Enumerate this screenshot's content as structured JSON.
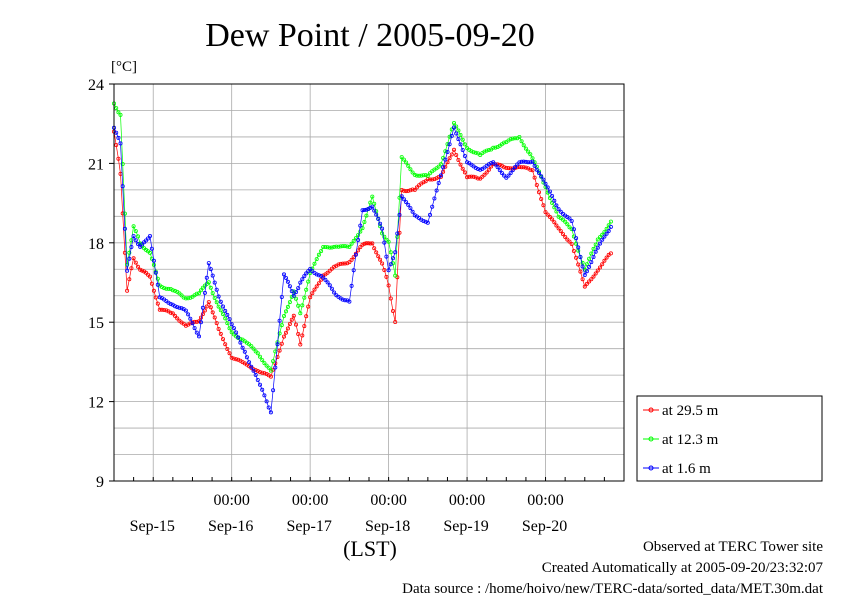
{
  "chart_data": {
    "type": "line",
    "title": "Dew Point / 2005-09-20",
    "ylabel": "[°C]",
    "xlabel": "(LST)",
    "ylim": [
      9,
      24
    ],
    "yticks": [
      9,
      12,
      15,
      18,
      21,
      24
    ],
    "xlim_days": [
      "2005-09-14T12:00",
      "2005-09-20T24:00"
    ],
    "time_tick_labels": [
      "00:00",
      "00:00",
      "00:00",
      "00:00",
      "00:00"
    ],
    "date_labels": [
      "Sep-15",
      "Sep-16",
      "Sep-17",
      "Sep-18",
      "Sep-19",
      "Sep-20"
    ],
    "grid": true,
    "legend_position": "right",
    "series": [
      {
        "name": "at 29.5 m",
        "color": "#ff0000",
        "points": [
          [
            "2005-09-14T12:00",
            22.2
          ],
          [
            "2005-09-14T14:00",
            20.6
          ],
          [
            "2005-09-14T16:00",
            16.2
          ],
          [
            "2005-09-14T18:00",
            17.4
          ],
          [
            "2005-09-14T20:00",
            17.0
          ],
          [
            "2005-09-14T23:00",
            16.7
          ],
          [
            "2005-09-15T02:00",
            15.5
          ],
          [
            "2005-09-15T06:00",
            15.3
          ],
          [
            "2005-09-15T10:00",
            14.9
          ],
          [
            "2005-09-15T14:00",
            15.0
          ],
          [
            "2005-09-15T17:00",
            15.8
          ],
          [
            "2005-09-15T20:00",
            14.7
          ],
          [
            "2005-09-16T00:00",
            13.7
          ],
          [
            "2005-09-16T04:00",
            13.4
          ],
          [
            "2005-09-16T08:00",
            13.2
          ],
          [
            "2005-09-16T12:00",
            12.9
          ],
          [
            "2005-09-16T16:00",
            14.5
          ],
          [
            "2005-09-16T19:00",
            15.2
          ],
          [
            "2005-09-16T21:00",
            14.2
          ],
          [
            "2005-09-17T00:00",
            15.9
          ],
          [
            "2005-09-17T04:00",
            16.8
          ],
          [
            "2005-09-17T08:00",
            17.1
          ],
          [
            "2005-09-17T12:00",
            17.3
          ],
          [
            "2005-09-17T16:00",
            17.9
          ],
          [
            "2005-09-17T19:00",
            18.0
          ],
          [
            "2005-09-17T22:00",
            17.2
          ],
          [
            "2005-09-18T00:00",
            16.4
          ],
          [
            "2005-09-18T02:00",
            15.0
          ],
          [
            "2005-09-18T04:00",
            20.0
          ],
          [
            "2005-09-18T08:00",
            20.0
          ],
          [
            "2005-09-18T12:00",
            20.4
          ],
          [
            "2005-09-18T16:00",
            20.5
          ],
          [
            "2005-09-18T20:00",
            21.5
          ],
          [
            "2005-09-19T00:00",
            20.5
          ],
          [
            "2005-09-19T04:00",
            20.4
          ],
          [
            "2005-09-19T08:00",
            21.0
          ],
          [
            "2005-09-19T12:00",
            20.8
          ],
          [
            "2005-09-19T16:00",
            20.9
          ],
          [
            "2005-09-19T20:00",
            20.7
          ],
          [
            "2005-09-20T00:00",
            19.2
          ],
          [
            "2005-09-20T04:00",
            18.5
          ],
          [
            "2005-09-20T08:00",
            18.0
          ],
          [
            "2005-09-20T12:00",
            16.3
          ],
          [
            "2005-09-20T16:00",
            17.0
          ],
          [
            "2005-09-20T20:00",
            17.6
          ]
        ]
      },
      {
        "name": "at 12.3 m",
        "color": "#00ff00",
        "points": [
          [
            "2005-09-14T12:00",
            23.3
          ],
          [
            "2005-09-14T14:00",
            22.8
          ],
          [
            "2005-09-14T16:00",
            17.2
          ],
          [
            "2005-09-14T18:00",
            18.6
          ],
          [
            "2005-09-14T20:00",
            18.0
          ],
          [
            "2005-09-14T23:00",
            17.6
          ],
          [
            "2005-09-15T02:00",
            16.4
          ],
          [
            "2005-09-15T06:00",
            16.2
          ],
          [
            "2005-09-15T10:00",
            15.9
          ],
          [
            "2005-09-15T14:00",
            16.1
          ],
          [
            "2005-09-15T17:00",
            16.5
          ],
          [
            "2005-09-15T20:00",
            15.6
          ],
          [
            "2005-09-16T00:00",
            14.6
          ],
          [
            "2005-09-16T04:00",
            14.3
          ],
          [
            "2005-09-16T08:00",
            13.8
          ],
          [
            "2005-09-16T12:00",
            13.2
          ],
          [
            "2005-09-16T16:00",
            15.2
          ],
          [
            "2005-09-16T19:00",
            16.2
          ],
          [
            "2005-09-16T21:00",
            15.3
          ],
          [
            "2005-09-17T00:00",
            16.9
          ],
          [
            "2005-09-17T04:00",
            17.8
          ],
          [
            "2005-09-17T08:00",
            17.9
          ],
          [
            "2005-09-17T12:00",
            17.8
          ],
          [
            "2005-09-17T16:00",
            18.6
          ],
          [
            "2005-09-17T19:00",
            19.7
          ],
          [
            "2005-09-17T22:00",
            18.4
          ],
          [
            "2005-09-18T00:00",
            18.0
          ],
          [
            "2005-09-18T02:00",
            16.8
          ],
          [
            "2005-09-18T04:00",
            21.2
          ],
          [
            "2005-09-18T08:00",
            20.6
          ],
          [
            "2005-09-18T12:00",
            20.5
          ],
          [
            "2005-09-18T16:00",
            21.0
          ],
          [
            "2005-09-18T20:00",
            22.5
          ],
          [
            "2005-09-19T00:00",
            21.6
          ],
          [
            "2005-09-19T04:00",
            21.3
          ],
          [
            "2005-09-19T08:00",
            21.6
          ],
          [
            "2005-09-19T12:00",
            21.8
          ],
          [
            "2005-09-19T16:00",
            22.0
          ],
          [
            "2005-09-19T20:00",
            21.2
          ],
          [
            "2005-09-20T00:00",
            20.1
          ],
          [
            "2005-09-20T04:00",
            19.0
          ],
          [
            "2005-09-20T08:00",
            18.5
          ],
          [
            "2005-09-20T12:00",
            17.0
          ],
          [
            "2005-09-20T16:00",
            18.1
          ],
          [
            "2005-09-20T20:00",
            18.8
          ]
        ]
      },
      {
        "name": "at 1.6 m",
        "color": "#0000ff",
        "points": [
          [
            "2005-09-14T12:00",
            22.3
          ],
          [
            "2005-09-14T14:00",
            21.8
          ],
          [
            "2005-09-14T16:00",
            16.9
          ],
          [
            "2005-09-14T18:00",
            18.3
          ],
          [
            "2005-09-14T20:00",
            17.8
          ],
          [
            "2005-09-14T23:00",
            18.3
          ],
          [
            "2005-09-15T02:00",
            15.9
          ],
          [
            "2005-09-15T06:00",
            15.7
          ],
          [
            "2005-09-15T10:00",
            15.4
          ],
          [
            "2005-09-15T14:00",
            14.5
          ],
          [
            "2005-09-15T17:00",
            17.2
          ],
          [
            "2005-09-15T20:00",
            16.0
          ],
          [
            "2005-09-16T00:00",
            14.9
          ],
          [
            "2005-09-16T04:00",
            13.9
          ],
          [
            "2005-09-16T08:00",
            12.8
          ],
          [
            "2005-09-16T12:00",
            11.6
          ],
          [
            "2005-09-16T16:00",
            16.8
          ],
          [
            "2005-09-16T19:00",
            16.0
          ],
          [
            "2005-09-16T21:00",
            16.5
          ],
          [
            "2005-09-17T00:00",
            17.0
          ],
          [
            "2005-09-17T04:00",
            16.7
          ],
          [
            "2005-09-17T08:00",
            16.0
          ],
          [
            "2005-09-17T12:00",
            15.8
          ],
          [
            "2005-09-17T16:00",
            19.2
          ],
          [
            "2005-09-17T19:00",
            19.4
          ],
          [
            "2005-09-17T22:00",
            18.5
          ],
          [
            "2005-09-18T00:00",
            17.0
          ],
          [
            "2005-09-18T02:00",
            17.6
          ],
          [
            "2005-09-18T04:00",
            19.8
          ],
          [
            "2005-09-18T08:00",
            19.0
          ],
          [
            "2005-09-18T12:00",
            18.8
          ],
          [
            "2005-09-18T16:00",
            20.5
          ],
          [
            "2005-09-18T20:00",
            22.4
          ],
          [
            "2005-09-19T00:00",
            21.0
          ],
          [
            "2005-09-19T04:00",
            20.8
          ],
          [
            "2005-09-19T08:00",
            21.0
          ],
          [
            "2005-09-19T12:00",
            20.5
          ],
          [
            "2005-09-19T16:00",
            21.0
          ],
          [
            "2005-09-19T20:00",
            21.1
          ],
          [
            "2005-09-20T00:00",
            20.2
          ],
          [
            "2005-09-20T04:00",
            19.3
          ],
          [
            "2005-09-20T08:00",
            18.8
          ],
          [
            "2005-09-20T12:00",
            16.8
          ],
          [
            "2005-09-20T16:00",
            17.8
          ],
          [
            "2005-09-20T20:00",
            18.6
          ]
        ]
      }
    ]
  },
  "footer": {
    "line1": "Observed at TERC Tower site",
    "line2": "Created Automatically at 2005-09-20/23:32:07",
    "line3": "Data source : /home/hoivo/new/TERC-data/sorted_data/MET.30m.dat"
  }
}
